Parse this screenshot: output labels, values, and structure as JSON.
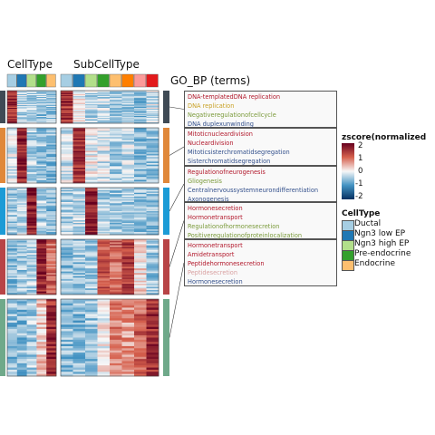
{
  "headers": {
    "celltype": "CellType",
    "subcelltype": "SubCellType",
    "gobp": "GO_BP (terms)"
  },
  "go_terms": [
    {
      "cluster": 1,
      "terms": [
        {
          "text": "DNA-templatedDNA replication",
          "color": "#b2182b"
        },
        {
          "text": "DNA replication",
          "color": "#c9a227"
        },
        {
          "text": "Negativeregulationofcellcycle",
          "color": "#7a9a3a"
        },
        {
          "text": "DNA duplexunwinding",
          "color": "#33508c"
        }
      ]
    },
    {
      "cluster": 2,
      "terms": [
        {
          "text": "Mitoticnucleardivision",
          "color": "#b2182b"
        },
        {
          "text": "Nucleardivision",
          "color": "#b2182b"
        },
        {
          "text": "Mitoticsisterchromatidsegregation",
          "color": "#33508c"
        },
        {
          "text": "Sisterchromatidsegregation",
          "color": "#33508c"
        }
      ]
    },
    {
      "cluster": 3,
      "terms": [
        {
          "text": "Regulationofneurogenesis",
          "color": "#b2182b"
        },
        {
          "text": "Gliogenesis",
          "color": "#7a9a3a"
        },
        {
          "text": "Centralnervoussystemneurondifferentiation",
          "color": "#33508c"
        },
        {
          "text": "Axonogenesis",
          "color": "#33508c"
        }
      ]
    },
    {
      "cluster": 4,
      "terms": [
        {
          "text": "Hormonesecretion",
          "color": "#b2182b"
        },
        {
          "text": "Hormonetransport",
          "color": "#b2182b"
        },
        {
          "text": "Regulationofhormonesecretion",
          "color": "#7a9a3a"
        },
        {
          "text": "Positiveregulationofproteinlocalization",
          "color": "#7a9a3a"
        }
      ]
    },
    {
      "cluster": 5,
      "terms": [
        {
          "text": "Hormonetransport",
          "color": "#b2182b"
        },
        {
          "text": "Amidetransport",
          "color": "#b2182b"
        },
        {
          "text": "Peptidehormonesecretion",
          "color": "#b2182b"
        },
        {
          "text": "Peptidesecretion",
          "color": "#d9a0a0"
        },
        {
          "text": "Hormonesecretion",
          "color": "#33508c"
        }
      ]
    }
  ],
  "legend_zscore": {
    "title": "zscore(normalized",
    "ticks": [
      "2",
      "1",
      "0",
      "-1",
      "-2"
    ],
    "colors": [
      "#67001f",
      "#d6604d",
      "#f7f7f7",
      "#4393c3",
      "#053061"
    ]
  },
  "legend_celltype": {
    "title": "CellType",
    "items": [
      {
        "label": "Ductal",
        "color": "#a6cee3"
      },
      {
        "label": "Ngn3 low EP",
        "color": "#1f78b4"
      },
      {
        "label": "Ngn3 high EP",
        "color": "#b2df8a"
      },
      {
        "label": "Pre-endocrine",
        "color": "#33a02c"
      },
      {
        "label": "Endocrine",
        "color": "#fdbf6f"
      }
    ]
  },
  "chart_data": {
    "type": "heatmap",
    "title": "",
    "celltype_annotation": [
      "Ductal",
      "Ngn3 low EP",
      "Ngn3 high EP",
      "Pre-endocrine",
      "Endocrine"
    ],
    "subcelltype_colors": [
      "#a6cee3",
      "#1f78b4",
      "#b2df8a",
      "#33a02c",
      "#fdbf6f",
      "#ff7f00",
      "#fb9a99",
      "#e31a1c"
    ],
    "clusters": [
      {
        "id": 1,
        "color": "#3f4a55",
        "rows": 40,
        "celltype_z": [
          1.5,
          -0.3,
          -0.4,
          -0.5,
          -0.5
        ],
        "subcelltype_z": [
          1.4,
          0.0,
          -0.3,
          -0.3,
          -0.4,
          -0.4,
          -0.6,
          -0.2
        ]
      },
      {
        "id": 2,
        "color": "#e0883a",
        "rows": 62,
        "celltype_z": [
          -0.2,
          1.6,
          -0.4,
          -0.5,
          -0.6
        ],
        "subcelltype_z": [
          -0.2,
          1.5,
          0.0,
          -0.2,
          -0.5,
          -0.3,
          -0.6,
          -0.5
        ]
      },
      {
        "id": 3,
        "color": "#1b9bd6",
        "rows": 50,
        "celltype_z": [
          -0.5,
          -0.3,
          1.7,
          -0.4,
          -0.6
        ],
        "subcelltype_z": [
          -0.4,
          -0.3,
          1.7,
          -0.4,
          -0.5,
          -0.4,
          -0.5,
          -0.5
        ]
      },
      {
        "id": 4,
        "color": "#b84446",
        "rows": 60,
        "celltype_z": [
          -0.6,
          -0.5,
          -0.4,
          1.6,
          1.0
        ],
        "subcelltype_z": [
          -0.6,
          -0.5,
          -0.5,
          1.2,
          1.0,
          1.4,
          0.2,
          -0.5
        ]
      },
      {
        "id": 5,
        "color": "#6fa98a",
        "rows": 83,
        "celltype_z": [
          -0.6,
          -0.6,
          -0.4,
          0.3,
          1.5
        ],
        "subcelltype_z": [
          -0.6,
          -0.6,
          -0.5,
          0.0,
          0.8,
          0.6,
          1.0,
          1.5
        ]
      }
    ],
    "legend": [
      "zscore(normalized",
      "CellType"
    ]
  }
}
